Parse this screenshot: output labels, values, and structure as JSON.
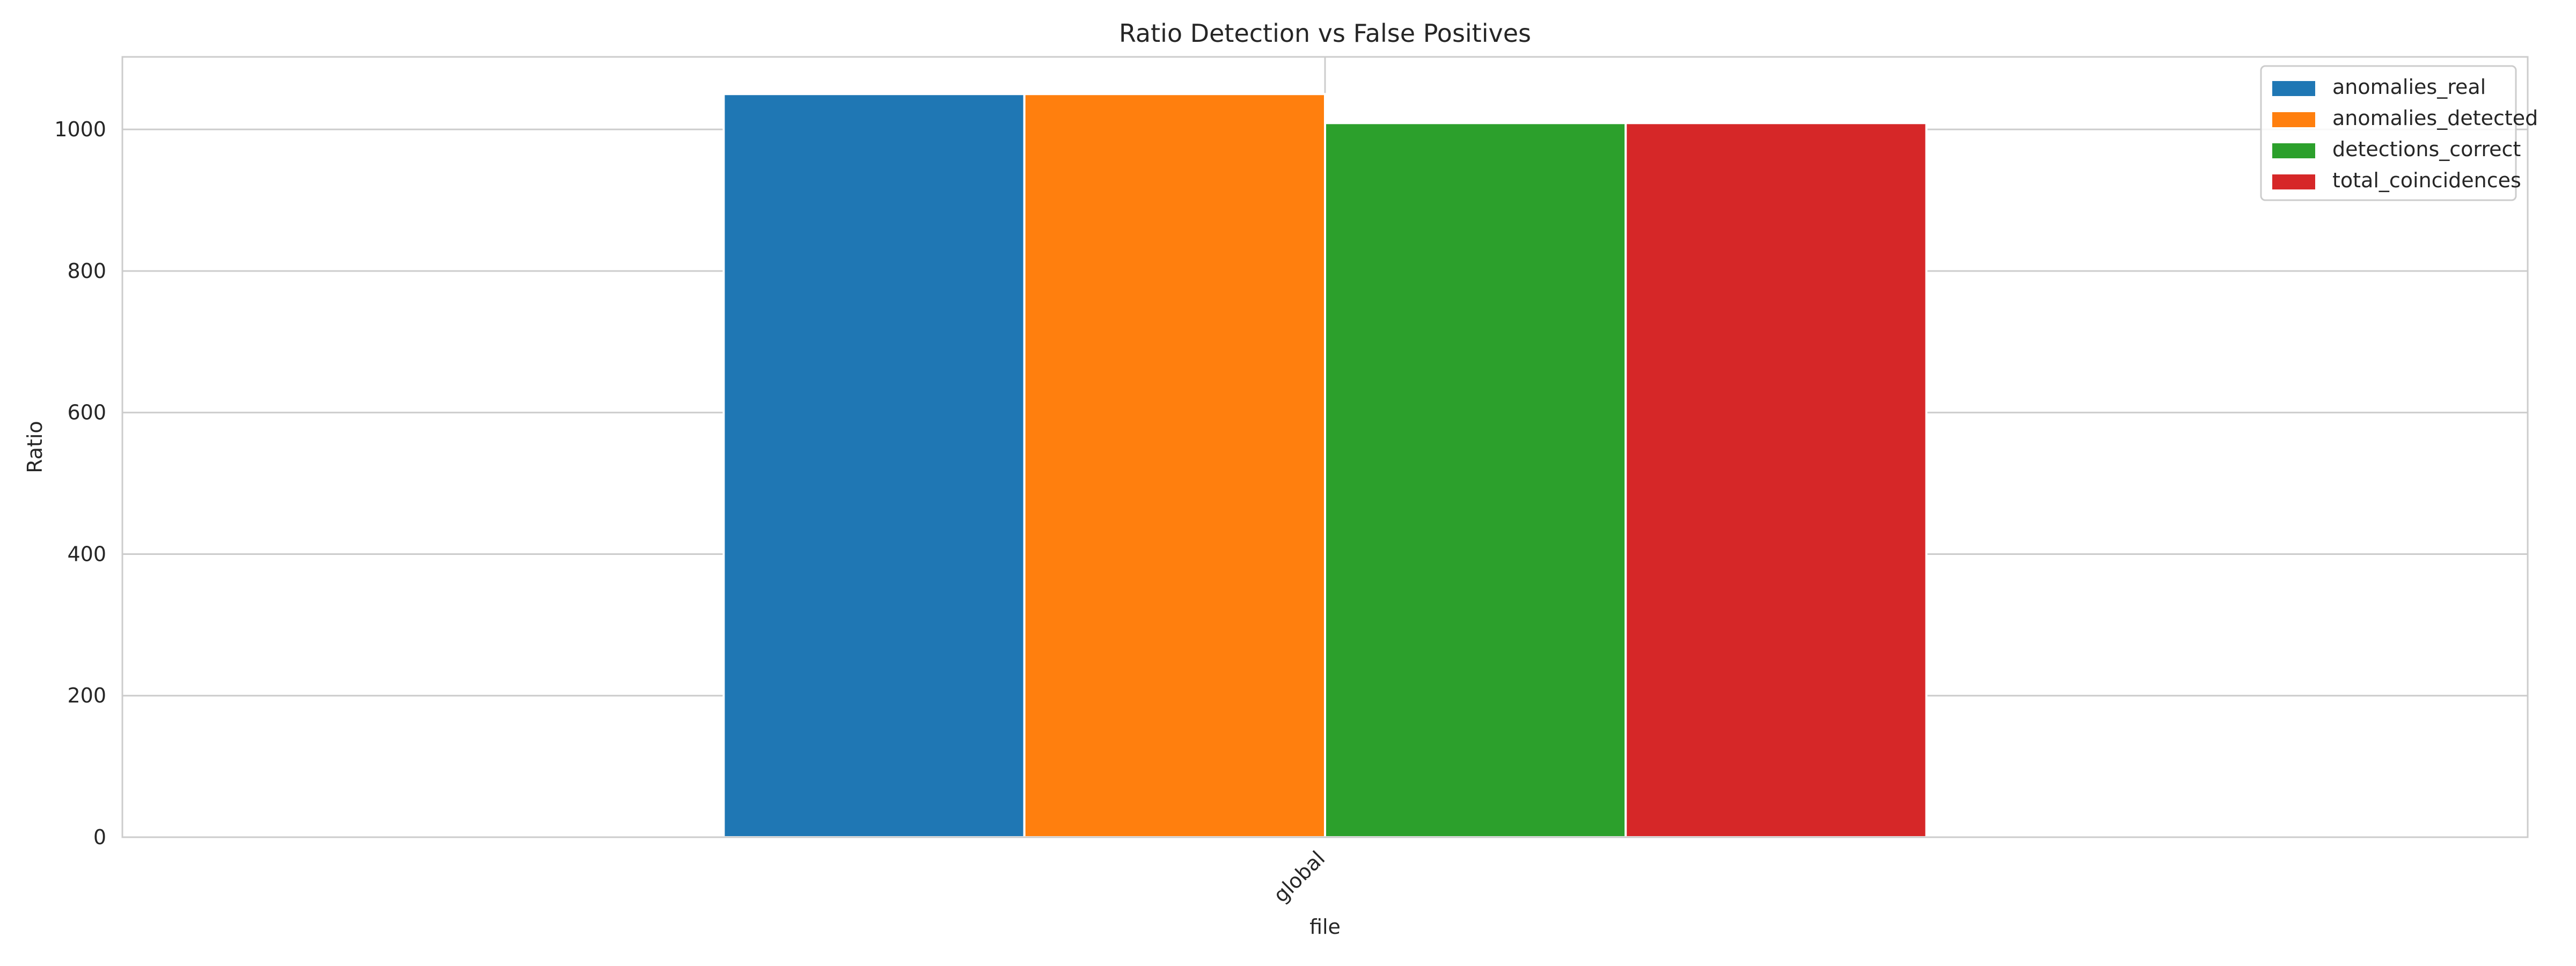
{
  "chart_data": {
    "type": "bar",
    "title": "Ratio Detection vs False Positives",
    "xlabel": "file",
    "ylabel": "Ratio",
    "categories": [
      "global"
    ],
    "series": [
      {
        "name": "anomalies_real",
        "values": [
          1050
        ],
        "color": "#1f77b4"
      },
      {
        "name": "anomalies_detected",
        "values": [
          1050
        ],
        "color": "#ff7f0e"
      },
      {
        "name": "detections_correct",
        "values": [
          1009
        ],
        "color": "#2ca02c"
      },
      {
        "name": "total_coincidences",
        "values": [
          1009
        ],
        "color": "#d62728"
      }
    ],
    "ylim": [
      0,
      1102.5
    ],
    "yticks": [
      "0",
      "200",
      "400",
      "600",
      "800",
      "1000"
    ],
    "xtick_rotation": 45,
    "grid": true,
    "legend_position": "top-right"
  }
}
